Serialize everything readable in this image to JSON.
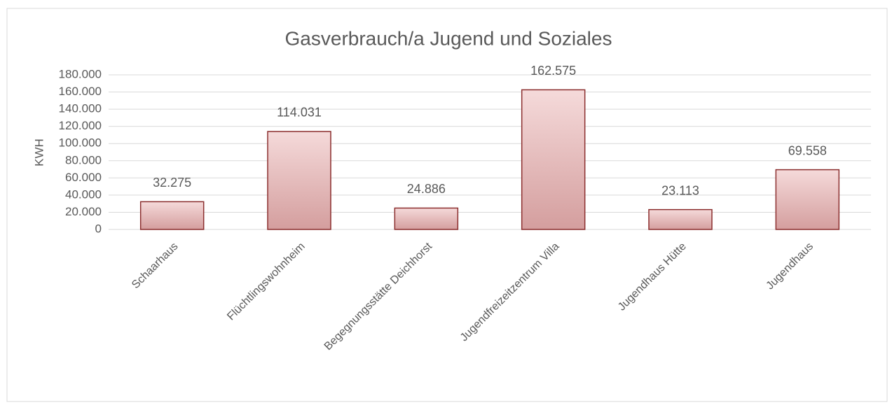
{
  "chart_data": {
    "type": "bar",
    "title": "Gasverbrauch/a Jugend und Soziales",
    "y_label": "KWH",
    "categories": [
      "Schaarhaus",
      "Flüchtlingswohnheim",
      "Begegnungsstätte Deichhorst",
      "Jugendfreizeitzentrum Villa",
      "Jugendhaus Hütte",
      "Jugendhaus"
    ],
    "values": [
      32275,
      114031,
      24886,
      162575,
      23113,
      69558
    ],
    "value_labels": [
      "32.275",
      "114.031",
      "24.886",
      "162.575",
      "23.113",
      "69.558"
    ],
    "color": "#8b2e2e",
    "ylim": [
      0,
      180000
    ],
    "yticks": [
      0,
      {
        "value": 20000,
        "label": "20.000"
      },
      {
        "value": 40000,
        "label": "40.000"
      },
      {
        "value": 60000,
        "label": "60.000"
      },
      {
        "value": 80000,
        "label": "80.000"
      },
      {
        "value": 100000,
        "label": "100.000"
      },
      {
        "value": 120000,
        "label": "120.000"
      },
      {
        "value": 140000,
        "label": "140.000"
      },
      {
        "value": 160000,
        "label": "160.000"
      },
      {
        "value": 180000,
        "label": "180.000"
      }
    ],
    "grid": true
  }
}
